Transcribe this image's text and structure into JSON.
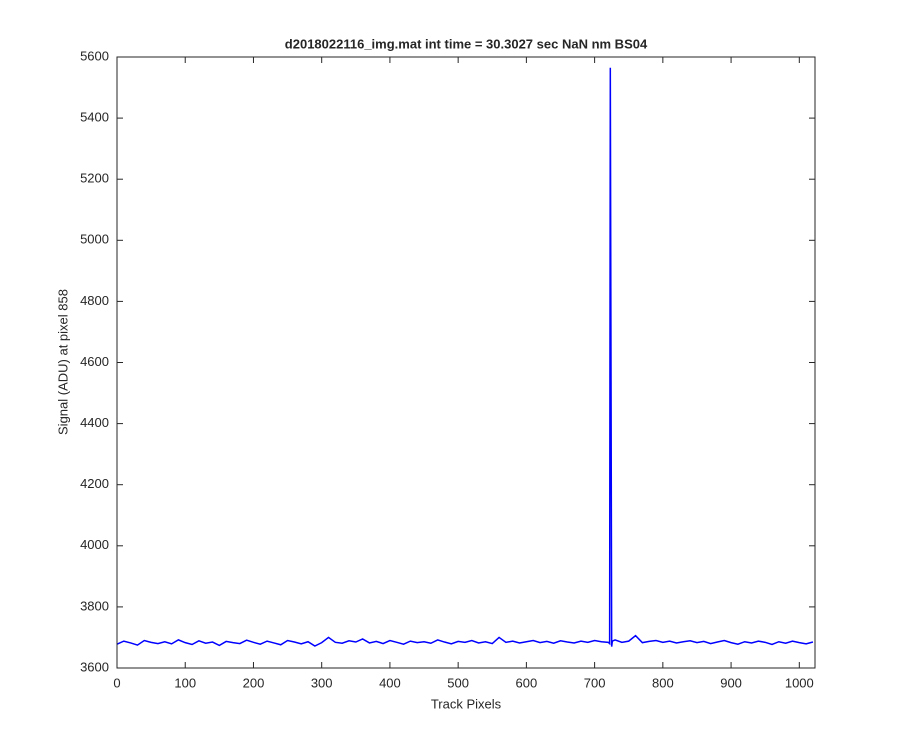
{
  "chart_data": {
    "type": "line",
    "title": "d2018022116_img.mat int time = 30.3027 sec  NaN nm BS04",
    "x_label": "Track Pixels",
    "y_label": "Signal (ADU) at pixel 858",
    "xlim": [
      0,
      1023
    ],
    "ylim": [
      3600,
      5600
    ],
    "xticks": [
      0,
      100,
      200,
      300,
      400,
      500,
      600,
      700,
      800,
      900,
      1000
    ],
    "yticks": [
      3600,
      3800,
      4000,
      4200,
      4400,
      4600,
      4800,
      5000,
      5200,
      5400,
      5600
    ],
    "x": [
      0,
      10,
      20,
      30,
      40,
      50,
      60,
      70,
      80,
      90,
      100,
      110,
      120,
      130,
      140,
      150,
      160,
      170,
      180,
      190,
      200,
      210,
      220,
      230,
      240,
      250,
      260,
      270,
      280,
      290,
      300,
      310,
      320,
      330,
      340,
      350,
      360,
      370,
      380,
      390,
      400,
      410,
      420,
      430,
      440,
      450,
      460,
      470,
      480,
      490,
      500,
      510,
      520,
      530,
      540,
      550,
      560,
      570,
      580,
      590,
      600,
      610,
      620,
      630,
      640,
      650,
      660,
      670,
      680,
      690,
      700,
      710,
      720,
      722,
      723,
      725,
      726,
      730,
      740,
      750,
      760,
      770,
      780,
      790,
      800,
      810,
      820,
      830,
      840,
      850,
      860,
      870,
      880,
      890,
      900,
      910,
      920,
      930,
      940,
      950,
      960,
      970,
      980,
      990,
      1000,
      1010,
      1020
    ],
    "series": [
      {
        "name": "signal",
        "color": "#0000ff",
        "values": [
          3678,
          3688,
          3682,
          3675,
          3690,
          3684,
          3680,
          3686,
          3679,
          3692,
          3683,
          3677,
          3689,
          3681,
          3685,
          3674,
          3687,
          3683,
          3680,
          3691,
          3684,
          3678,
          3688,
          3682,
          3676,
          3690,
          3685,
          3679,
          3686,
          3672,
          3683,
          3700,
          3684,
          3681,
          3689,
          3685,
          3695,
          3682,
          3687,
          3680,
          3690,
          3684,
          3678,
          3688,
          3683,
          3686,
          3681,
          3692,
          3685,
          3679,
          3687,
          3684,
          3690,
          3682,
          3686,
          3680,
          3700,
          3684,
          3688,
          3682,
          3686,
          3690,
          3683,
          3687,
          3681,
          3689,
          3685,
          3682,
          3688,
          3684,
          3690,
          3686,
          3684,
          3680,
          5565,
          3670,
          3688,
          3692,
          3684,
          3688,
          3706,
          3683,
          3687,
          3690,
          3684,
          3688,
          3682,
          3686,
          3689,
          3683,
          3687,
          3680,
          3685,
          3690,
          3683,
          3678,
          3686,
          3682,
          3688,
          3684,
          3677,
          3686,
          3681,
          3688,
          3683,
          3679,
          3685
        ]
      }
    ]
  }
}
